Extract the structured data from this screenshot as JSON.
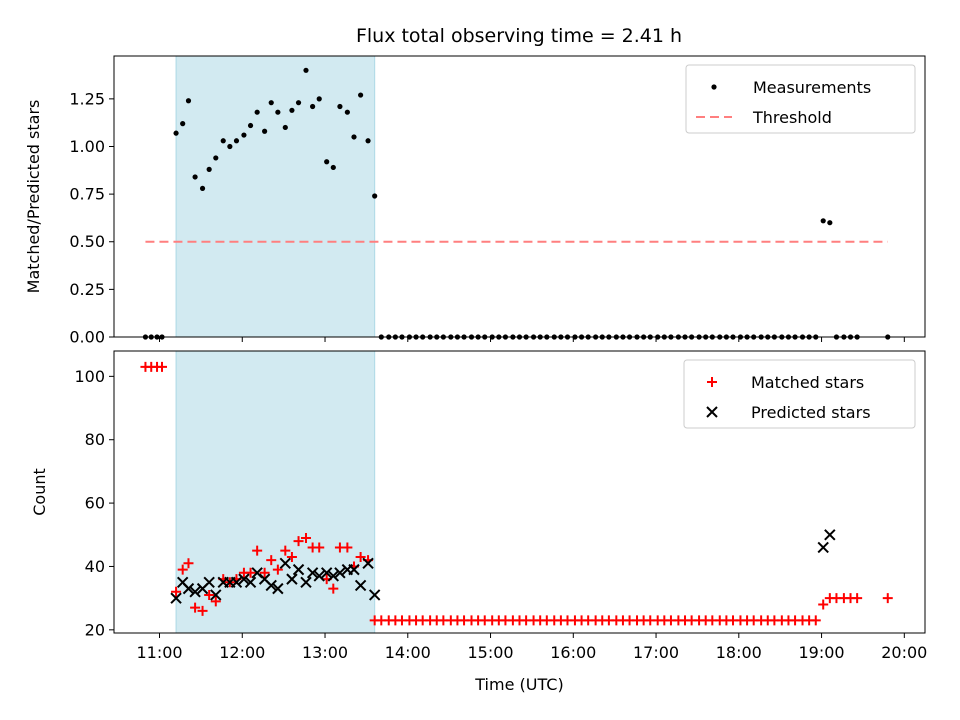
{
  "colors": {
    "measurement": "#000000",
    "threshold": "#ff7f7f",
    "matched": "#ff0000",
    "predicted": "#000000",
    "shade": "#add8e6"
  },
  "chart_data": [
    {
      "type": "scatter",
      "title": "Flux total observing time = 2.41 h",
      "xlabel": "",
      "ylabel": "Matched/Predicted stars",
      "x_unit": "hours UTC",
      "xlim": [
        10.45,
        20.25
      ],
      "ylim": [
        0,
        1.475
      ],
      "yticks": [
        0,
        0.25,
        0.5,
        0.75,
        1.0,
        1.25
      ],
      "ytick_labels": [
        "0.00",
        "0.25",
        "0.50",
        "0.75",
        "1.00",
        "1.25"
      ],
      "xticks": [
        11,
        12,
        13,
        14,
        15,
        16,
        17,
        18,
        19,
        20
      ],
      "shaded_span": [
        11.2,
        13.6
      ],
      "grid": false,
      "legend_position": "top-right",
      "series": [
        {
          "name": "Measurements",
          "marker": "dot",
          "points": [
            [
              10.83,
              0
            ],
            [
              10.9,
              0
            ],
            [
              10.97,
              0
            ],
            [
              11.03,
              0
            ],
            [
              11.2,
              1.07
            ],
            [
              11.28,
              1.12
            ],
            [
              11.35,
              1.24
            ],
            [
              11.43,
              0.84
            ],
            [
              11.52,
              0.78
            ],
            [
              11.6,
              0.88
            ],
            [
              11.68,
              0.94
            ],
            [
              11.77,
              1.03
            ],
            [
              11.85,
              1.0
            ],
            [
              11.93,
              1.03
            ],
            [
              12.02,
              1.06
            ],
            [
              12.1,
              1.11
            ],
            [
              12.18,
              1.18
            ],
            [
              12.27,
              1.08
            ],
            [
              12.35,
              1.23
            ],
            [
              12.43,
              1.18
            ],
            [
              12.52,
              1.1
            ],
            [
              12.6,
              1.19
            ],
            [
              12.68,
              1.23
            ],
            [
              12.77,
              1.4
            ],
            [
              12.85,
              1.21
            ],
            [
              12.93,
              1.25
            ],
            [
              13.02,
              0.92
            ],
            [
              13.1,
              0.89
            ],
            [
              13.18,
              1.21
            ],
            [
              13.27,
              1.18
            ],
            [
              13.35,
              1.05
            ],
            [
              13.43,
              1.27
            ],
            [
              13.52,
              1.03
            ],
            [
              13.6,
              0.74
            ],
            [
              13.68,
              0
            ],
            [
              13.77,
              0
            ],
            [
              13.85,
              0
            ],
            [
              13.93,
              0
            ],
            [
              14.02,
              0
            ],
            [
              14.1,
              0
            ],
            [
              14.18,
              0
            ],
            [
              14.27,
              0
            ],
            [
              14.35,
              0
            ],
            [
              14.43,
              0
            ],
            [
              14.52,
              0
            ],
            [
              14.6,
              0
            ],
            [
              14.68,
              0
            ],
            [
              14.77,
              0
            ],
            [
              14.85,
              0
            ],
            [
              14.93,
              0
            ],
            [
              15.02,
              0
            ],
            [
              15.1,
              0
            ],
            [
              15.18,
              0
            ],
            [
              15.27,
              0
            ],
            [
              15.35,
              0
            ],
            [
              15.43,
              0
            ],
            [
              15.52,
              0
            ],
            [
              15.6,
              0
            ],
            [
              15.68,
              0
            ],
            [
              15.77,
              0
            ],
            [
              15.85,
              0
            ],
            [
              15.93,
              0
            ],
            [
              16.02,
              0
            ],
            [
              16.1,
              0
            ],
            [
              16.18,
              0
            ],
            [
              16.27,
              0
            ],
            [
              16.35,
              0
            ],
            [
              16.43,
              0
            ],
            [
              16.52,
              0
            ],
            [
              16.6,
              0
            ],
            [
              16.68,
              0
            ],
            [
              16.77,
              0
            ],
            [
              16.85,
              0
            ],
            [
              16.93,
              0
            ],
            [
              17.02,
              0
            ],
            [
              17.1,
              0
            ],
            [
              17.18,
              0
            ],
            [
              17.27,
              0
            ],
            [
              17.35,
              0
            ],
            [
              17.43,
              0
            ],
            [
              17.52,
              0
            ],
            [
              17.6,
              0
            ],
            [
              17.68,
              0
            ],
            [
              17.77,
              0
            ],
            [
              17.85,
              0
            ],
            [
              17.93,
              0
            ],
            [
              18.02,
              0
            ],
            [
              18.1,
              0
            ],
            [
              18.18,
              0
            ],
            [
              18.27,
              0
            ],
            [
              18.35,
              0
            ],
            [
              18.43,
              0
            ],
            [
              18.52,
              0
            ],
            [
              18.6,
              0
            ],
            [
              18.68,
              0
            ],
            [
              18.77,
              0
            ],
            [
              18.85,
              0
            ],
            [
              18.93,
              0
            ],
            [
              19.02,
              0.61
            ],
            [
              19.1,
              0.6
            ],
            [
              19.18,
              0
            ],
            [
              19.27,
              0
            ],
            [
              19.35,
              0
            ],
            [
              19.43,
              0
            ],
            [
              19.8,
              0
            ]
          ]
        },
        {
          "name": "Threshold",
          "style": "dashed",
          "x": [
            10.83,
            19.8
          ],
          "y": [
            0.5,
            0.5
          ]
        }
      ]
    },
    {
      "type": "scatter",
      "title": "",
      "xlabel": "Time (UTC)",
      "ylabel": "Count",
      "x_unit": "hours UTC",
      "xlim": [
        10.45,
        20.25
      ],
      "ylim": [
        19,
        108
      ],
      "yticks": [
        20,
        40,
        60,
        80,
        100
      ],
      "ytick_labels": [
        "20",
        "40",
        "60",
        "80",
        "100"
      ],
      "xticks": [
        11,
        12,
        13,
        14,
        15,
        16,
        17,
        18,
        19,
        20
      ],
      "xtick_labels": [
        "11:00",
        "12:00",
        "13:00",
        "14:00",
        "15:00",
        "16:00",
        "17:00",
        "18:00",
        "19:00",
        "20:00"
      ],
      "shaded_span": [
        11.2,
        13.6
      ],
      "grid": false,
      "legend_position": "top-right",
      "series": [
        {
          "name": "Matched stars",
          "marker": "plus",
          "points": [
            [
              10.83,
              103
            ],
            [
              10.9,
              103
            ],
            [
              10.97,
              103
            ],
            [
              11.03,
              103
            ],
            [
              11.2,
              32
            ],
            [
              11.28,
              39
            ],
            [
              11.35,
              41
            ],
            [
              11.43,
              27
            ],
            [
              11.52,
              26
            ],
            [
              11.6,
              31
            ],
            [
              11.68,
              29
            ],
            [
              11.77,
              36
            ],
            [
              11.85,
              35
            ],
            [
              11.93,
              36
            ],
            [
              12.02,
              38
            ],
            [
              12.1,
              38
            ],
            [
              12.18,
              45
            ],
            [
              12.27,
              38
            ],
            [
              12.35,
              42
            ],
            [
              12.43,
              39
            ],
            [
              12.52,
              45
            ],
            [
              12.6,
              43
            ],
            [
              12.68,
              48
            ],
            [
              12.77,
              49
            ],
            [
              12.85,
              46
            ],
            [
              12.93,
              46
            ],
            [
              13.02,
              36
            ],
            [
              13.1,
              33
            ],
            [
              13.18,
              46
            ],
            [
              13.27,
              46
            ],
            [
              13.35,
              40
            ],
            [
              13.43,
              43
            ],
            [
              13.52,
              42
            ],
            [
              13.6,
              23
            ],
            [
              13.68,
              23
            ],
            [
              13.77,
              23
            ],
            [
              13.85,
              23
            ],
            [
              13.93,
              23
            ],
            [
              14.02,
              23
            ],
            [
              14.1,
              23
            ],
            [
              14.18,
              23
            ],
            [
              14.27,
              23
            ],
            [
              14.35,
              23
            ],
            [
              14.43,
              23
            ],
            [
              14.52,
              23
            ],
            [
              14.6,
              23
            ],
            [
              14.68,
              23
            ],
            [
              14.77,
              23
            ],
            [
              14.85,
              23
            ],
            [
              14.93,
              23
            ],
            [
              15.02,
              23
            ],
            [
              15.1,
              23
            ],
            [
              15.18,
              23
            ],
            [
              15.27,
              23
            ],
            [
              15.35,
              23
            ],
            [
              15.43,
              23
            ],
            [
              15.52,
              23
            ],
            [
              15.6,
              23
            ],
            [
              15.68,
              23
            ],
            [
              15.77,
              23
            ],
            [
              15.85,
              23
            ],
            [
              15.93,
              23
            ],
            [
              16.02,
              23
            ],
            [
              16.1,
              23
            ],
            [
              16.18,
              23
            ],
            [
              16.27,
              23
            ],
            [
              16.35,
              23
            ],
            [
              16.43,
              23
            ],
            [
              16.52,
              23
            ],
            [
              16.6,
              23
            ],
            [
              16.68,
              23
            ],
            [
              16.77,
              23
            ],
            [
              16.85,
              23
            ],
            [
              16.93,
              23
            ],
            [
              17.02,
              23
            ],
            [
              17.1,
              23
            ],
            [
              17.18,
              23
            ],
            [
              17.27,
              23
            ],
            [
              17.35,
              23
            ],
            [
              17.43,
              23
            ],
            [
              17.52,
              23
            ],
            [
              17.6,
              23
            ],
            [
              17.68,
              23
            ],
            [
              17.77,
              23
            ],
            [
              17.85,
              23
            ],
            [
              17.93,
              23
            ],
            [
              18.02,
              23
            ],
            [
              18.1,
              23
            ],
            [
              18.18,
              23
            ],
            [
              18.27,
              23
            ],
            [
              18.35,
              23
            ],
            [
              18.43,
              23
            ],
            [
              18.52,
              23
            ],
            [
              18.6,
              23
            ],
            [
              18.68,
              23
            ],
            [
              18.77,
              23
            ],
            [
              18.85,
              23
            ],
            [
              18.93,
              23
            ],
            [
              19.02,
              28
            ],
            [
              19.1,
              30
            ],
            [
              19.18,
              30
            ],
            [
              19.27,
              30
            ],
            [
              19.35,
              30
            ],
            [
              19.43,
              30
            ],
            [
              19.8,
              30
            ]
          ]
        },
        {
          "name": "Predicted stars",
          "marker": "x",
          "points": [
            [
              11.2,
              30
            ],
            [
              11.28,
              35
            ],
            [
              11.35,
              33
            ],
            [
              11.43,
              32
            ],
            [
              11.52,
              33
            ],
            [
              11.6,
              35
            ],
            [
              11.68,
              31
            ],
            [
              11.77,
              35
            ],
            [
              11.85,
              35
            ],
            [
              11.93,
              35
            ],
            [
              12.02,
              36
            ],
            [
              12.1,
              35
            ],
            [
              12.18,
              38
            ],
            [
              12.27,
              36
            ],
            [
              12.35,
              34
            ],
            [
              12.43,
              33
            ],
            [
              12.52,
              41
            ],
            [
              12.6,
              36
            ],
            [
              12.68,
              39
            ],
            [
              12.77,
              35
            ],
            [
              12.85,
              38
            ],
            [
              12.93,
              37
            ],
            [
              13.02,
              38
            ],
            [
              13.1,
              37
            ],
            [
              13.18,
              38
            ],
            [
              13.27,
              39
            ],
            [
              13.35,
              39
            ],
            [
              13.43,
              34
            ],
            [
              13.52,
              41
            ],
            [
              13.6,
              31
            ],
            [
              19.02,
              46
            ],
            [
              19.1,
              50
            ]
          ]
        }
      ]
    }
  ]
}
